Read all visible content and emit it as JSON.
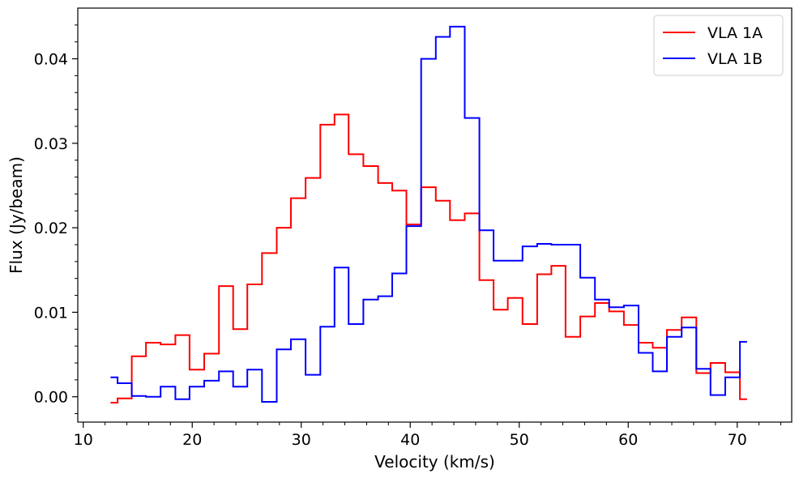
{
  "chart_data": {
    "type": "line",
    "drawstyle": "steps-mid",
    "xlabel": "Velocity (km/s)",
    "ylabel": "Flux (Jy/beam)",
    "xlim": [
      9.5,
      75
    ],
    "ylim": [
      -0.003,
      0.046
    ],
    "xticks": [
      10,
      20,
      30,
      40,
      50,
      60,
      70
    ],
    "yticks": [
      0.0,
      0.01,
      0.02,
      0.03,
      0.04
    ],
    "ytick_labels": [
      "0.00",
      "0.01",
      "0.02",
      "0.03",
      "0.04"
    ],
    "legend_position": "top-right",
    "x": [
      12.5,
      13.8,
      15.1,
      16.4,
      17.8,
      19.1,
      20.4,
      21.8,
      23.1,
      24.4,
      25.7,
      27.1,
      28.4,
      29.7,
      31.1,
      32.4,
      33.7,
      35.0,
      36.4,
      37.7,
      39.0,
      40.3,
      41.7,
      43.0,
      44.3,
      45.7,
      47.0,
      48.3,
      49.6,
      51.0,
      52.3,
      53.6,
      54.9,
      56.3,
      57.6,
      58.9,
      60.3,
      61.6,
      62.9,
      64.2,
      65.6,
      66.9,
      68.2,
      69.6,
      70.9
    ],
    "series": [
      {
        "name": "VLA 1A",
        "color": "#ff0000",
        "values": [
          -0.0007,
          -0.0002,
          0.0048,
          0.0064,
          0.0062,
          0.0073,
          0.0032,
          0.0051,
          0.0131,
          0.008,
          0.0133,
          0.017,
          0.02,
          0.0235,
          0.0259,
          0.0322,
          0.0334,
          0.0287,
          0.0273,
          0.0253,
          0.0244,
          0.0204,
          0.0248,
          0.0232,
          0.0209,
          0.0217,
          0.0138,
          0.0103,
          0.0117,
          0.0086,
          0.0145,
          0.0155,
          0.0071,
          0.0095,
          0.0111,
          0.0101,
          0.0085,
          0.0064,
          0.0058,
          0.0079,
          0.0094,
          0.0028,
          0.004,
          0.0029,
          -0.0003
        ]
      },
      {
        "name": "VLA 1B",
        "color": "#0000ff",
        "values": [
          0.0023,
          0.0016,
          0.0001,
          0.0,
          0.0012,
          -0.0003,
          0.0012,
          0.0019,
          0.003,
          0.0012,
          0.0032,
          -0.0006,
          0.0056,
          0.0068,
          0.0026,
          0.0083,
          0.0153,
          0.0086,
          0.0115,
          0.0119,
          0.0146,
          0.0202,
          0.04,
          0.0426,
          0.0438,
          0.033,
          0.0197,
          0.0161,
          0.0161,
          0.0178,
          0.0181,
          0.018,
          0.018,
          0.0141,
          0.0115,
          0.0106,
          0.0108,
          0.0052,
          0.003,
          0.0071,
          0.0082,
          0.0033,
          0.0002,
          0.0023,
          0.0065
        ]
      }
    ]
  }
}
